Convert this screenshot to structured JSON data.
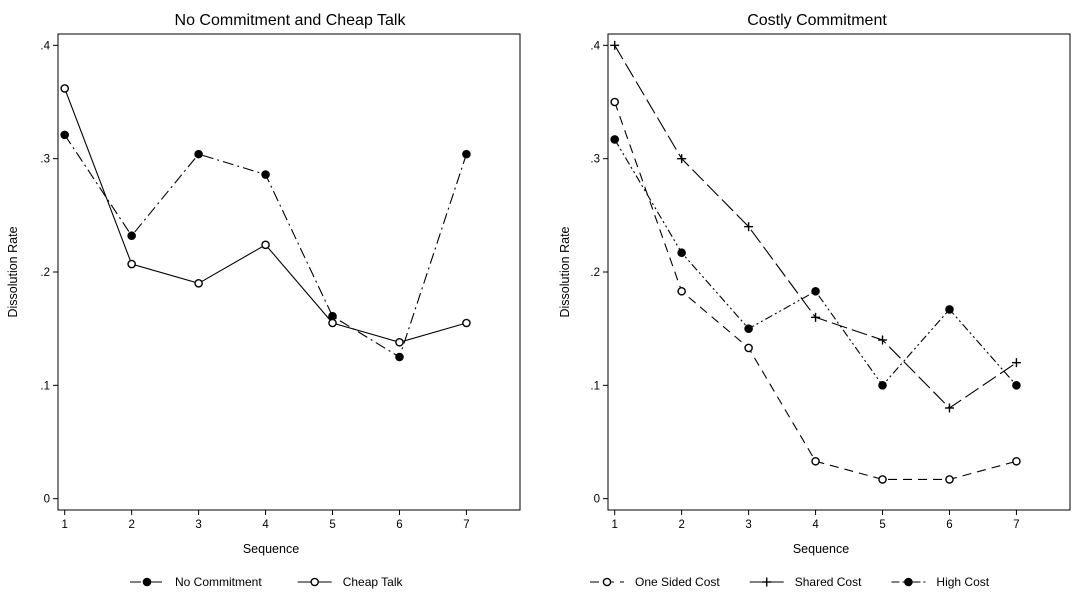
{
  "chart_data": [
    {
      "type": "line",
      "title": "No Commitment and Cheap Talk",
      "xlabel": "Sequence",
      "ylabel": "Dissolution Rate",
      "x": [
        1,
        2,
        3,
        4,
        5,
        6,
        7
      ],
      "xlim": [
        0.9,
        7.8
      ],
      "ylim": [
        -0.01,
        0.41
      ],
      "xticks": [
        "1",
        "2",
        "3",
        "4",
        "5",
        "6",
        "7"
      ],
      "yticks": [
        {
          "value": 0,
          "label": "0"
        },
        {
          "value": 0.1,
          "label": ".1"
        },
        {
          "value": 0.2,
          "label": ".2"
        },
        {
          "value": 0.3,
          "label": ".3"
        },
        {
          "value": 0.4,
          "label": ".4"
        }
      ],
      "grid": false,
      "legend_position": "bottom",
      "series": [
        {
          "name": "No Commitment",
          "values": [
            0.321,
            0.232,
            0.304,
            0.286,
            0.161,
            0.125,
            0.304
          ],
          "marker": "filled-circle",
          "line": "dash-dot",
          "color": "#000000"
        },
        {
          "name": "Cheap Talk",
          "values": [
            0.362,
            0.207,
            0.19,
            0.224,
            0.155,
            0.138,
            0.155
          ],
          "marker": "hollow-circle",
          "line": "solid",
          "color": "#000000"
        }
      ]
    },
    {
      "type": "line",
      "title": "Costly Commitment",
      "xlabel": "Sequence",
      "ylabel": "Dissolution Rate",
      "x": [
        1,
        2,
        3,
        4,
        5,
        6,
        7
      ],
      "xlim": [
        0.9,
        7.8
      ],
      "ylim": [
        -0.01,
        0.41
      ],
      "xticks": [
        "1",
        "2",
        "3",
        "4",
        "5",
        "6",
        "7"
      ],
      "yticks": [
        {
          "value": 0,
          "label": "0"
        },
        {
          "value": 0.1,
          "label": ".1"
        },
        {
          "value": 0.2,
          "label": ".2"
        },
        {
          "value": 0.3,
          "label": ".3"
        },
        {
          "value": 0.4,
          "label": ".4"
        }
      ],
      "grid": false,
      "legend_position": "bottom",
      "series": [
        {
          "name": "One Sided Cost",
          "values": [
            0.35,
            0.183,
            0.133,
            0.033,
            0.017,
            0.017,
            0.033
          ],
          "marker": "hollow-circle",
          "line": "dashed",
          "color": "#000000"
        },
        {
          "name": "Shared Cost",
          "values": [
            0.4,
            0.3,
            0.24,
            0.16,
            0.14,
            0.08,
            0.12
          ],
          "marker": "plus",
          "line": "long-dash",
          "color": "#000000"
        },
        {
          "name": "High Cost",
          "values": [
            0.317,
            0.217,
            0.15,
            0.183,
            0.1,
            0.167,
            0.1
          ],
          "marker": "filled-circle",
          "line": "dash-dot-dot",
          "color": "#000000"
        }
      ]
    }
  ]
}
